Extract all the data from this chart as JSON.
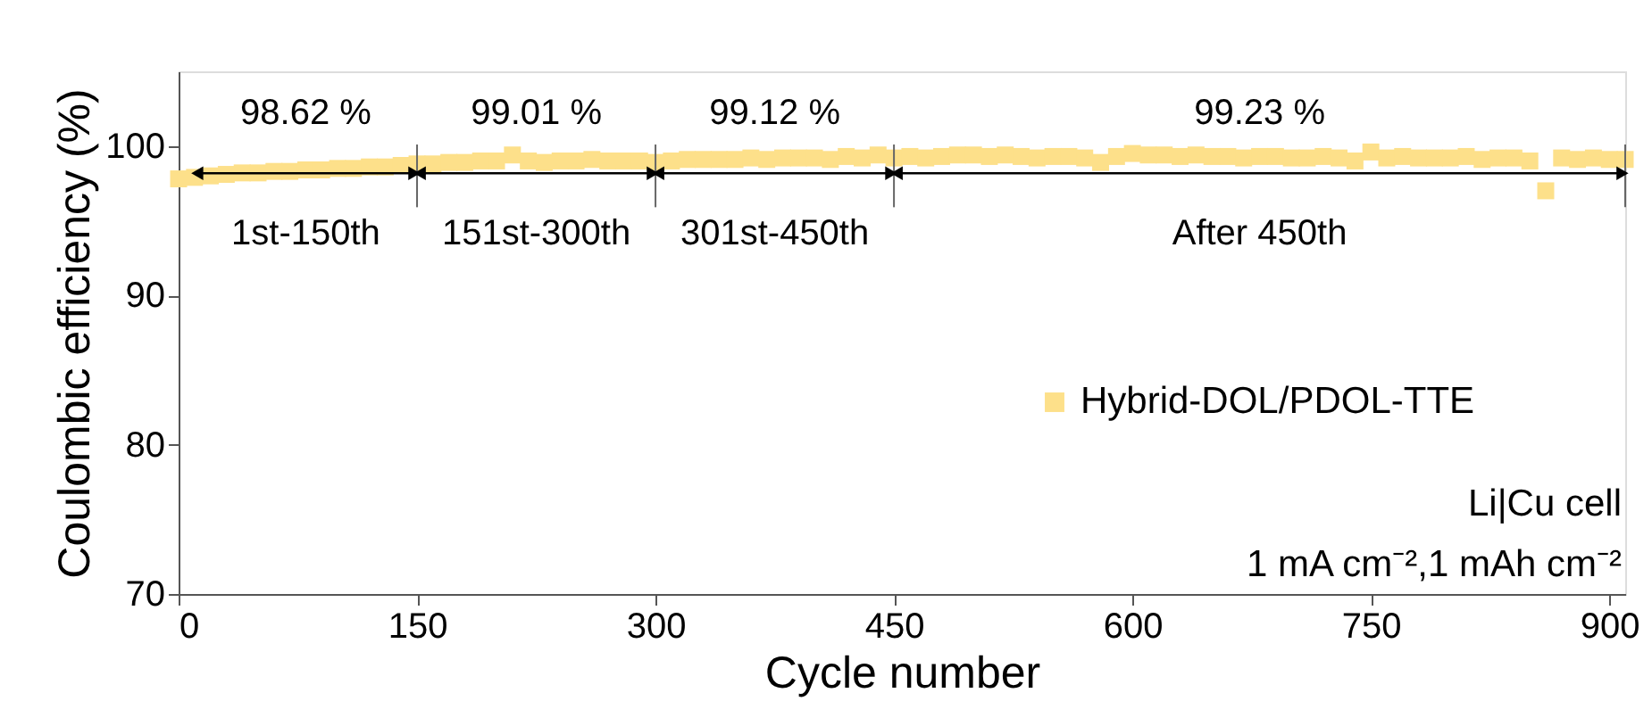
{
  "chart_data": {
    "type": "scatter",
    "xlabel": "Cycle number",
    "ylabel": "Coulombic efficiency (%)",
    "x": [
      0,
      10,
      20,
      30,
      40,
      50,
      60,
      70,
      80,
      90,
      100,
      110,
      120,
      130,
      140,
      150,
      160,
      170,
      180,
      190,
      200,
      210,
      220,
      230,
      240,
      250,
      260,
      270,
      280,
      290,
      300,
      310,
      320,
      330,
      340,
      350,
      360,
      370,
      380,
      390,
      400,
      410,
      420,
      430,
      440,
      450,
      460,
      470,
      480,
      490,
      500,
      510,
      520,
      530,
      540,
      550,
      560,
      570,
      580,
      590,
      600,
      610,
      620,
      630,
      640,
      650,
      660,
      670,
      680,
      690,
      700,
      710,
      720,
      730,
      740,
      750,
      760,
      770,
      780,
      790,
      800,
      810,
      820,
      830,
      840,
      850,
      860,
      870,
      880,
      890,
      900,
      910
    ],
    "series": [
      {
        "name": "Hybrid-DOL/PDOL-TTE",
        "color": "#fde08a",
        "values": [
          97.8,
          97.9,
          98.0,
          98.1,
          98.2,
          98.2,
          98.3,
          98.3,
          98.4,
          98.4,
          98.5,
          98.5,
          98.6,
          98.6,
          98.7,
          98.8,
          98.8,
          98.9,
          98.9,
          99.0,
          99.0,
          99.4,
          99.0,
          98.9,
          99.0,
          99.0,
          99.1,
          99.0,
          99.0,
          99.0,
          98.9,
          99.0,
          99.1,
          99.1,
          99.1,
          99.1,
          99.2,
          99.1,
          99.2,
          99.2,
          99.2,
          99.1,
          99.3,
          99.2,
          99.4,
          99.2,
          99.3,
          99.2,
          99.3,
          99.4,
          99.4,
          99.3,
          99.4,
          99.3,
          99.2,
          99.3,
          99.3,
          99.2,
          98.9,
          99.3,
          99.5,
          99.4,
          99.4,
          99.3,
          99.4,
          99.3,
          99.3,
          99.2,
          99.3,
          99.3,
          99.2,
          99.2,
          99.3,
          99.2,
          99.0,
          99.6,
          99.2,
          99.3,
          99.2,
          99.2,
          99.2,
          99.3,
          99.1,
          99.2,
          99.2,
          99.0,
          97.0,
          99.2,
          99.1,
          99.2,
          99.1,
          99.1
        ]
      }
    ],
    "marker": "square",
    "legend": "right",
    "xlim": [
      0,
      910
    ],
    "ylim": [
      70,
      105
    ],
    "xticks": [
      0,
      150,
      300,
      450,
      600,
      750,
      900
    ],
    "yticks": [
      70,
      80,
      90,
      100
    ],
    "ref_lines": [
      {
        "axis": "x",
        "value": 150,
        "label": null
      },
      {
        "axis": "x",
        "value": 300,
        "label": null
      },
      {
        "axis": "x",
        "value": 450,
        "label": null
      },
      {
        "axis": "x",
        "value": 910,
        "label": null
      }
    ],
    "annotations": [
      "98.62 %",
      "99.01 %",
      "99.12 %",
      "99.23 %",
      "1st-150th",
      "151st-300th",
      "301st-450th",
      "After 450th",
      "Li|Cu cell",
      "1 mA cm⁻²,1 mAh cm⁻²"
    ]
  }
}
